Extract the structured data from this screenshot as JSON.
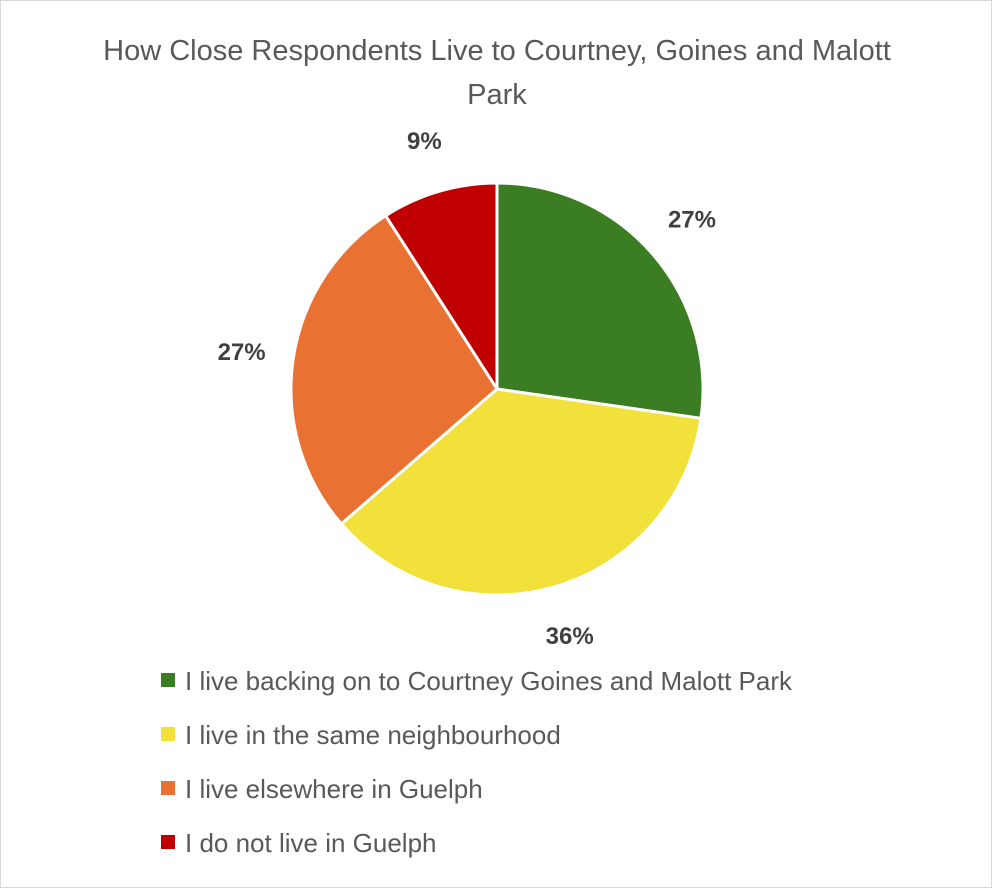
{
  "chart_data": {
    "type": "pie",
    "title": "How Close Respondents Live to Courtney, Goines and Malott Park",
    "slices": [
      {
        "label": "I live backing on to Courtney Goines and Malott Park",
        "value": 27,
        "display": "27%",
        "color": "#3a7d22"
      },
      {
        "label": "I live in the same neighbourhood",
        "value": 36,
        "display": "36%",
        "color": "#f2e03b"
      },
      {
        "label": "I live elsewhere in Guelph",
        "value": 27,
        "display": "27%",
        "color": "#e97132"
      },
      {
        "label": "I do not live in Guelph",
        "value": 9,
        "display": "9%",
        "color": "#c00000"
      }
    ],
    "legend_position": "bottom",
    "data_labels": "outside"
  }
}
